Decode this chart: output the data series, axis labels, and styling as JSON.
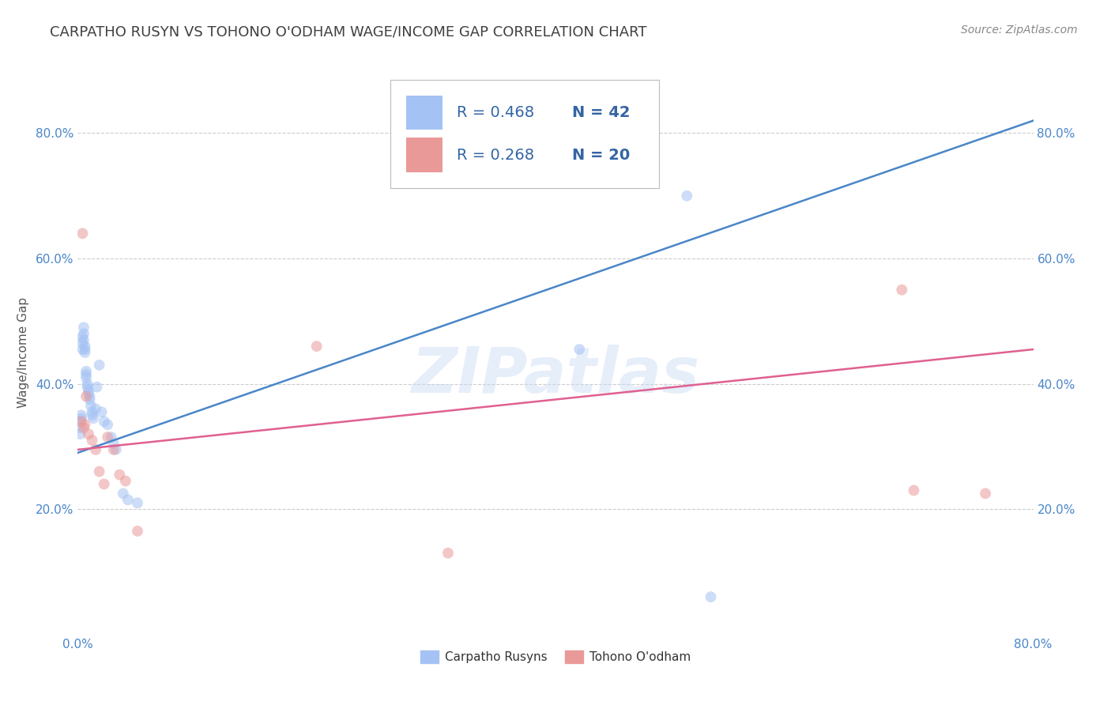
{
  "title": "CARPATHO RUSYN VS TOHONO O'ODHAM WAGE/INCOME GAP CORRELATION CHART",
  "source": "Source: ZipAtlas.com",
  "ylabel": "Wage/Income Gap",
  "watermark": "ZIPatlas",
  "blue_R": "R = 0.468",
  "blue_N": "N = 42",
  "pink_R": "R = 0.268",
  "pink_N": "N = 20",
  "blue_label": "Carpatho Rusyns",
  "pink_label": "Tohono O'odham",
  "blue_color": "#a4c2f4",
  "pink_color": "#ea9999",
  "blue_line_color": "#4a86c8",
  "pink_line_color": "#e06090",
  "title_color": "#404040",
  "source_color": "#888888",
  "legend_text_color": "#3465a4",
  "grid_color": "#cccccc",
  "background_color": "#ffffff",
  "xlim": [
    0.0,
    0.8
  ],
  "ylim": [
    0.0,
    0.9
  ],
  "blue_scatter_x": [
    0.002,
    0.002,
    0.002,
    0.003,
    0.003,
    0.004,
    0.004,
    0.004,
    0.005,
    0.005,
    0.005,
    0.006,
    0.006,
    0.006,
    0.007,
    0.007,
    0.007,
    0.008,
    0.008,
    0.009,
    0.009,
    0.01,
    0.01,
    0.011,
    0.012,
    0.012,
    0.013,
    0.015,
    0.016,
    0.018,
    0.02,
    0.022,
    0.025,
    0.028,
    0.03,
    0.032,
    0.038,
    0.042,
    0.05,
    0.42,
    0.51,
    0.53
  ],
  "blue_scatter_y": [
    0.34,
    0.33,
    0.32,
    0.35,
    0.345,
    0.475,
    0.465,
    0.455,
    0.49,
    0.48,
    0.47,
    0.46,
    0.455,
    0.45,
    0.42,
    0.415,
    0.41,
    0.4,
    0.395,
    0.39,
    0.385,
    0.38,
    0.375,
    0.365,
    0.355,
    0.35,
    0.345,
    0.36,
    0.395,
    0.43,
    0.355,
    0.34,
    0.335,
    0.315,
    0.305,
    0.295,
    0.225,
    0.215,
    0.21,
    0.455,
    0.7,
    0.06
  ],
  "pink_scatter_x": [
    0.003,
    0.004,
    0.005,
    0.006,
    0.007,
    0.009,
    0.012,
    0.015,
    0.018,
    0.022,
    0.025,
    0.03,
    0.035,
    0.04,
    0.05,
    0.2,
    0.31,
    0.69,
    0.7,
    0.76
  ],
  "pink_scatter_y": [
    0.34,
    0.64,
    0.33,
    0.335,
    0.38,
    0.32,
    0.31,
    0.295,
    0.26,
    0.24,
    0.315,
    0.295,
    0.255,
    0.245,
    0.165,
    0.46,
    0.13,
    0.55,
    0.23,
    0.225
  ],
  "blue_trendline_x": [
    0.0,
    0.8
  ],
  "blue_trendline_y": [
    0.29,
    0.82
  ],
  "pink_trendline_x": [
    0.0,
    0.8
  ],
  "pink_trendline_y": [
    0.295,
    0.455
  ],
  "xtick_positions": [
    0.0,
    0.8
  ],
  "xtick_labels": [
    "0.0%",
    "80.0%"
  ],
  "ytick_positions": [
    0.0,
    0.2,
    0.4,
    0.6,
    0.8
  ],
  "ytick_labels": [
    "",
    "20.0%",
    "40.0%",
    "60.0%",
    "80.0%"
  ],
  "marker_size": 100,
  "marker_alpha": 0.55,
  "line_width": 1.8,
  "title_fontsize": 13,
  "source_fontsize": 10,
  "legend_fontsize": 14,
  "label_fontsize": 11,
  "tick_fontsize": 11,
  "tick_color": "#4a86c8"
}
